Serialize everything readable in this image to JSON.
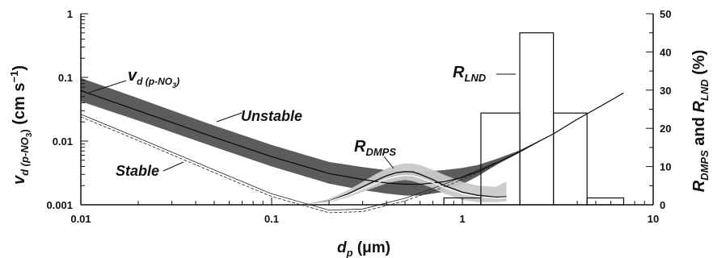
{
  "chart_data": {
    "type": "line",
    "xscale": "log",
    "xlim": [
      0.01,
      10
    ],
    "y_left": {
      "scale": "log",
      "lim": [
        0.001,
        1
      ],
      "ticks": [
        0.001,
        0.01,
        0.1,
        1
      ]
    },
    "y_right": {
      "scale": "linear",
      "lim": [
        0,
        50
      ],
      "ticks": [
        0,
        10,
        20,
        30,
        40,
        50
      ]
    },
    "x_ticks": [
      0.01,
      0.1,
      1,
      10
    ],
    "x_tick_labels": [
      "0.01",
      "0.1",
      "1",
      "10"
    ],
    "y_left_tick_labels": [
      "0.001",
      "0.01",
      "0.1",
      "1"
    ],
    "y_right_tick_labels": [
      "0",
      "10",
      "20",
      "30",
      "40",
      "50"
    ],
    "xlabel": {
      "main": "d",
      "sub": "p",
      "unit": " (μm)"
    },
    "ylabel_left": {
      "main": "v",
      "sub": "d (p-NO",
      "sub3": "3",
      "close": ")",
      "unit": " (cm s",
      "sup": "−1",
      "unit_close": ")"
    },
    "ylabel_right": {
      "r1": "R",
      "s1": "DMPS",
      "mid": " and ",
      "r2": "R",
      "s2": "LND",
      "unit": " (%)"
    },
    "annotations": {
      "vd": {
        "main": "v",
        "sub": "d (p-NO",
        "sub3": "3",
        "close": ")"
      },
      "unstable": "Unstable",
      "stable": "Stable",
      "rdmps": {
        "main": "R",
        "sub": "DMPS"
      },
      "rlnd": {
        "main": "R",
        "sub": "LND"
      }
    },
    "series": [
      {
        "name": "Unstable",
        "x": [
          0.01,
          0.02,
          0.05,
          0.1,
          0.2,
          0.3,
          0.4,
          0.5,
          0.6,
          0.7,
          0.8,
          1.0,
          1.2,
          1.5,
          2.0,
          2.5,
          3.0,
          4.0,
          5.0,
          7.0
        ],
        "y": [
          0.062,
          0.03,
          0.0115,
          0.0057,
          0.0031,
          0.0025,
          0.0022,
          0.0021,
          0.0021,
          0.0022,
          0.0023,
          0.0027,
          0.0033,
          0.0045,
          0.0068,
          0.0098,
          0.013,
          0.022,
          0.032,
          0.057
        ],
        "y_low": [
          0.042,
          0.021,
          0.0081,
          0.004,
          0.00215,
          0.0017,
          0.0015,
          0.0014,
          0.0014,
          0.0015,
          0.0016,
          0.0021,
          0.0028,
          0.0042,
          0.0066,
          0.0096,
          0.013,
          0.022,
          0.032,
          0.057
        ],
        "y_high": [
          0.098,
          0.047,
          0.0175,
          0.0087,
          0.0047,
          0.0039,
          0.0035,
          0.0033,
          0.0033,
          0.0034,
          0.0035,
          0.0038,
          0.0042,
          0.0052,
          0.0072,
          0.01,
          0.013,
          0.022,
          0.032,
          0.057
        ]
      },
      {
        "name": "Stable",
        "x": [
          0.01,
          0.02,
          0.05,
          0.1,
          0.2,
          0.3,
          0.5,
          0.8,
          1.0,
          1.5
        ],
        "y": [
          0.024,
          0.0102,
          0.0032,
          0.00135,
          0.00075,
          0.00078,
          0.00115,
          0.0019,
          0.0025,
          0.0042
        ]
      },
      {
        "name": "R_DMPS",
        "x": [
          0.15,
          0.2,
          0.25,
          0.3,
          0.35,
          0.4,
          0.45,
          0.5,
          0.55,
          0.6,
          0.7,
          0.8,
          1.0,
          1.2,
          1.5,
          1.7
        ],
        "y": [
          0,
          1.0,
          2.8,
          4.7,
          6.3,
          7.6,
          8.4,
          8.7,
          8.6,
          8.0,
          6.6,
          5.1,
          3.3,
          2.5,
          2.0,
          2.1
        ],
        "y_low": [
          0,
          0.6,
          1.9,
          3.4,
          4.6,
          5.6,
          6.2,
          6.5,
          6.2,
          5.6,
          4.3,
          3.0,
          1.2,
          0.7,
          0.7,
          0.9
        ],
        "y_high": [
          0,
          1.5,
          3.8,
          6.0,
          8.0,
          9.5,
          10.4,
          10.8,
          10.8,
          10.4,
          9.2,
          7.9,
          6.0,
          5.0,
          4.7,
          6.1
        ]
      }
    ],
    "bars": {
      "name": "R_LND",
      "edges": [
        0.8,
        1.25,
        2.0,
        3.0,
        4.5,
        7.0
      ],
      "values": [
        1.8,
        24,
        45,
        24,
        1.8
      ]
    }
  }
}
